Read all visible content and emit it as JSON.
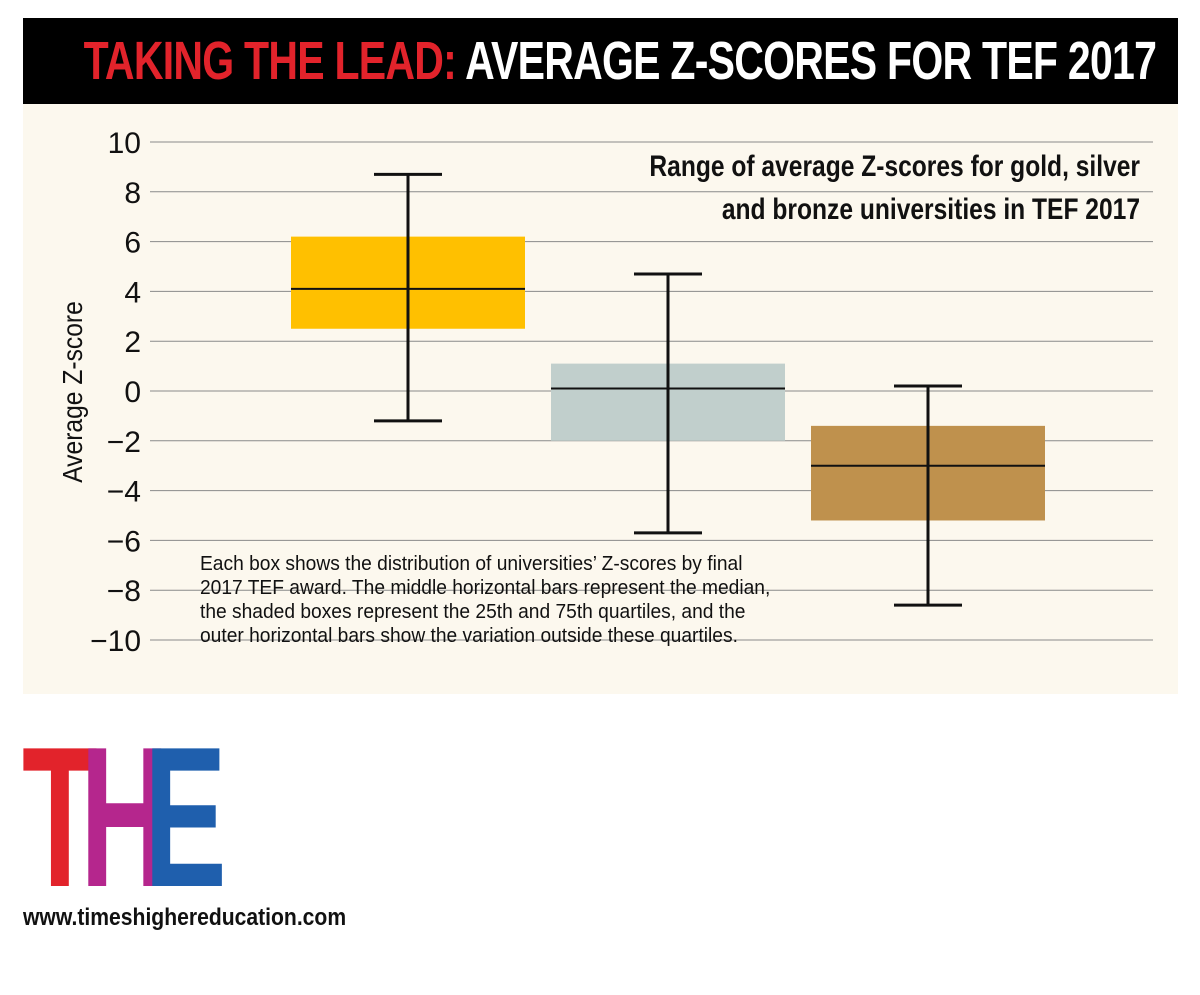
{
  "header": {
    "title_lead": "TAKING THE LEAD:",
    "title_rest": "AVERAGE Z-SCORES FOR TEF 2017",
    "lead_color": "#e2232b"
  },
  "chart_data": {
    "type": "boxplot",
    "title_lines": [
      "Range of average Z-scores for gold, silver",
      "and bronze universities in TEF 2017"
    ],
    "ylabel": "Average Z-score",
    "xlabel": "",
    "ylim": [
      -10,
      10
    ],
    "yticks": [
      {
        "value": 10,
        "label": "10"
      },
      {
        "value": 8,
        "label": "8"
      },
      {
        "value": 6,
        "label": "6"
      },
      {
        "value": 4,
        "label": "4"
      },
      {
        "value": 2,
        "label": "2"
      },
      {
        "value": 0,
        "label": "0"
      },
      {
        "value": -2,
        "label": "−2"
      },
      {
        "value": -4,
        "label": "−4"
      },
      {
        "value": -6,
        "label": "−6"
      },
      {
        "value": -8,
        "label": "−8"
      },
      {
        "value": -10,
        "label": "−10"
      }
    ],
    "grid": true,
    "series": [
      {
        "name": "gold",
        "color": "#ffc000",
        "whisker_low": -1.2,
        "q1": 2.5,
        "median": 4.1,
        "q3": 6.2,
        "whisker_high": 8.7
      },
      {
        "name": "silver",
        "color": "#c1cfcc",
        "whisker_low": -5.7,
        "q1": -2.0,
        "median": 0.1,
        "q3": 1.1,
        "whisker_high": 4.7
      },
      {
        "name": "bronze",
        "color": "#bf914d",
        "whisker_low": -8.6,
        "q1": -5.2,
        "median": -3.0,
        "q3": -1.4,
        "whisker_high": 0.2
      }
    ]
  },
  "note": {
    "lines": [
      "Each box shows the distribution of universities’ Z-scores by final",
      "2017 TEF award. The middle horizontal bars represent the median,",
      "the shaded boxes represent the 25th and 75th quartiles, and the",
      "outer horizontal bars show the variation outside these quartiles."
    ]
  },
  "logo": {
    "letters": [
      {
        "char": "T",
        "color": "#e2232b"
      },
      {
        "char": "H",
        "color": "#b5268d"
      },
      {
        "char": "E",
        "color": "#1f5fad"
      }
    ]
  },
  "footer": {
    "url": "www.timeshighereducation.com"
  }
}
